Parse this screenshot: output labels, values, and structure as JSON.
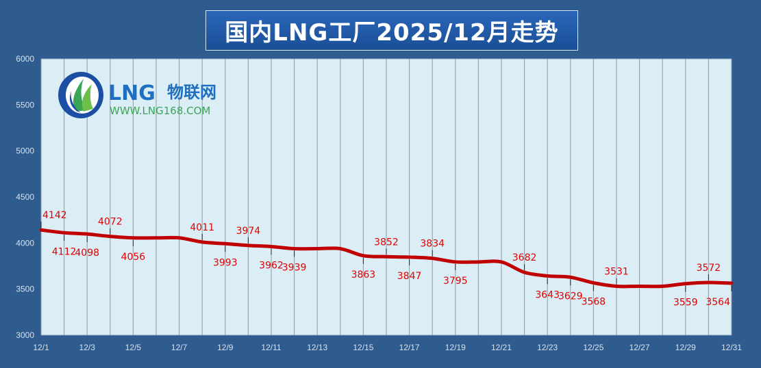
{
  "title": "国内LNG工厂2025/12月走势",
  "logo": {
    "brand": "LNG",
    "brand_cn": "物联网",
    "url": "WWW.LNG168.COM"
  },
  "colors": {
    "background": "#2f5c8f",
    "plot_area": "#dceef5",
    "line": "#c00000",
    "label": "#e00000"
  },
  "chart_data": {
    "type": "line",
    "title": "国内LNG工厂2025/12月走势",
    "xlabel": "",
    "ylabel": "",
    "ylim": [
      3000,
      6000
    ],
    "yticks": [
      3000,
      3500,
      4000,
      4500,
      5000,
      5500,
      6000
    ],
    "x_labels": [
      "12/1",
      "12/3",
      "12/5",
      "12/7",
      "12/9",
      "12/11",
      "12/13",
      "12/15",
      "12/17",
      "12/19",
      "12/21",
      "12/23",
      "12/25",
      "12/27",
      "12/29",
      "12/31"
    ],
    "grid": true,
    "series": [
      {
        "days": [
          1,
          2,
          3,
          4,
          5,
          6,
          7,
          8,
          9,
          10,
          11,
          12,
          13,
          14,
          15,
          16,
          17,
          18,
          19,
          20,
          21,
          22,
          23,
          24,
          25,
          26,
          27,
          28,
          29,
          30,
          31
        ],
        "values": [
          4142,
          4112,
          4098,
          4072,
          4056,
          4056,
          4056,
          4011,
          3993,
          3974,
          3962,
          3939,
          3939,
          3939,
          3863,
          3852,
          3847,
          3834,
          3795,
          3795,
          3795,
          3682,
          3643,
          3629,
          3568,
          3531,
          3531,
          3531,
          3559,
          3572,
          3564
        ]
      }
    ],
    "data_labels": [
      {
        "day": 1,
        "text": "4142"
      },
      {
        "day": 2,
        "text": "4112"
      },
      {
        "day": 3,
        "text": "4098"
      },
      {
        "day": 4,
        "text": "4072"
      },
      {
        "day": 5,
        "text": "4056"
      },
      {
        "day": 8,
        "text": "4011"
      },
      {
        "day": 9,
        "text": "3993"
      },
      {
        "day": 10,
        "text": "3974"
      },
      {
        "day": 11,
        "text": "3962"
      },
      {
        "day": 12,
        "text": "3939"
      },
      {
        "day": 15,
        "text": "3863"
      },
      {
        "day": 16,
        "text": "3852"
      },
      {
        "day": 17,
        "text": "3847"
      },
      {
        "day": 18,
        "text": "3834"
      },
      {
        "day": 19,
        "text": "3795"
      },
      {
        "day": 22,
        "text": "3682"
      },
      {
        "day": 23,
        "text": "3643"
      },
      {
        "day": 24,
        "text": "3629"
      },
      {
        "day": 25,
        "text": "3568"
      },
      {
        "day": 26,
        "text": "3531"
      },
      {
        "day": 29,
        "text": "3559"
      },
      {
        "day": 30,
        "text": "3572"
      },
      {
        "day": 31,
        "text": "3564"
      }
    ]
  }
}
